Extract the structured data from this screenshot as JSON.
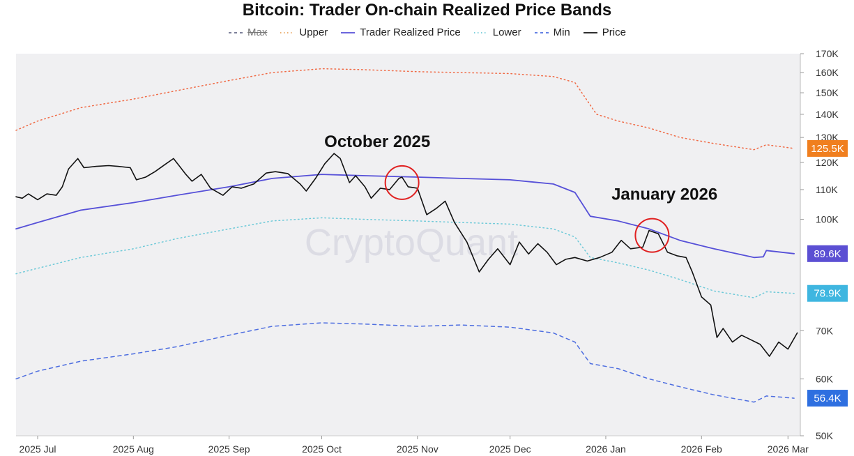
{
  "chart_data": {
    "type": "line",
    "title": "Bitcoin: Trader On-chain Realized Price Bands",
    "watermark": "CryptoQuant",
    "x_start": "2025-06-24",
    "x_end": "2026-03-05",
    "x_ticks": [
      {
        "date": "2025-07-01",
        "label": "2025 Jul"
      },
      {
        "date": "2025-08-01",
        "label": "2025 Aug"
      },
      {
        "date": "2025-09-01",
        "label": "2025 Sep"
      },
      {
        "date": "2025-10-01",
        "label": "2025 Oct"
      },
      {
        "date": "2025-11-01",
        "label": "2025 Nov"
      },
      {
        "date": "2025-12-01",
        "label": "2025 Dec"
      },
      {
        "date": "2026-01-01",
        "label": "2026 Jan"
      },
      {
        "date": "2026-02-01",
        "label": "2026 Feb"
      },
      {
        "date": "2026-03-01",
        "label": "2026 Mar"
      }
    ],
    "y_scale": "log",
    "ylim": [
      50000,
      170000
    ],
    "y_ticks": [
      {
        "value": 50000,
        "label": "50K"
      },
      {
        "value": 60000,
        "label": "60K"
      },
      {
        "value": 70000,
        "label": "70K"
      },
      {
        "value": 100000,
        "label": "100K"
      },
      {
        "value": 110000,
        "label": "110K"
      },
      {
        "value": 120000,
        "label": "120K"
      },
      {
        "value": 130000,
        "label": "130K"
      },
      {
        "value": 140000,
        "label": "140K"
      },
      {
        "value": 150000,
        "label": "150K"
      },
      {
        "value": 160000,
        "label": "160K"
      },
      {
        "value": 170000,
        "label": "170K"
      }
    ],
    "legend_position": "top-center",
    "legend": [
      {
        "name": "Max",
        "key": "max",
        "color": "#6b6f8c",
        "dash": "5,5",
        "disabled": true
      },
      {
        "name": "Upper",
        "key": "upper",
        "color": "#e8a35a",
        "dash": "1.5,4",
        "disabled": false
      },
      {
        "name": "Trader Realized Price",
        "key": "trp",
        "color": "#5650d8",
        "dash": "",
        "disabled": false
      },
      {
        "name": "Lower",
        "key": "lower",
        "color": "#6cc9d8",
        "dash": "1.5,4",
        "disabled": false
      },
      {
        "name": "Min",
        "key": "min",
        "color": "#4e6ee0",
        "dash": "5,5",
        "disabled": false
      },
      {
        "name": "Price",
        "key": "price",
        "color": "#111111",
        "dash": "",
        "disabled": false
      }
    ],
    "series": [
      {
        "name": "Upper",
        "key": "upper",
        "color": "#f06a45",
        "dash": "1.5,4",
        "width": 1.5,
        "points": [
          [
            "2025-06-24",
            133000
          ],
          [
            "2025-07-01",
            137000
          ],
          [
            "2025-07-15",
            143000
          ],
          [
            "2025-08-01",
            147000
          ],
          [
            "2025-08-15",
            151000
          ],
          [
            "2025-09-01",
            156000
          ],
          [
            "2025-09-15",
            160000
          ],
          [
            "2025-10-01",
            162000
          ],
          [
            "2025-10-15",
            161500
          ],
          [
            "2025-11-01",
            160500
          ],
          [
            "2025-11-15",
            160000
          ],
          [
            "2025-12-01",
            159500
          ],
          [
            "2025-12-15",
            158000
          ],
          [
            "2025-12-22",
            155000
          ],
          [
            "2025-12-29",
            140000
          ],
          [
            "2026-01-05",
            137000
          ],
          [
            "2026-01-15",
            134000
          ],
          [
            "2026-01-25",
            130000
          ],
          [
            "2026-02-05",
            127500
          ],
          [
            "2026-02-18",
            125000
          ],
          [
            "2026-02-22",
            127000
          ],
          [
            "2026-03-03",
            125500
          ]
        ]
      },
      {
        "name": "Trader Realized Price",
        "key": "trp",
        "color": "#5650d8",
        "dash": "",
        "width": 1.8,
        "points": [
          [
            "2025-06-24",
            97000
          ],
          [
            "2025-07-01",
            99000
          ],
          [
            "2025-07-15",
            103000
          ],
          [
            "2025-08-01",
            105500
          ],
          [
            "2025-08-15",
            108000
          ],
          [
            "2025-09-01",
            111000
          ],
          [
            "2025-09-15",
            114000
          ],
          [
            "2025-10-01",
            115500
          ],
          [
            "2025-10-15",
            115000
          ],
          [
            "2025-11-01",
            114500
          ],
          [
            "2025-11-15",
            114000
          ],
          [
            "2025-12-01",
            113500
          ],
          [
            "2025-12-15",
            112000
          ],
          [
            "2025-12-22",
            109000
          ],
          [
            "2025-12-27",
            101000
          ],
          [
            "2026-01-05",
            99500
          ],
          [
            "2026-01-15",
            97000
          ],
          [
            "2026-01-25",
            93500
          ],
          [
            "2026-02-05",
            91000
          ],
          [
            "2026-02-18",
            88500
          ],
          [
            "2026-02-21",
            88700
          ],
          [
            "2026-02-22",
            90500
          ],
          [
            "2026-03-03",
            89600
          ]
        ]
      },
      {
        "name": "Lower",
        "key": "lower",
        "color": "#6cc9d8",
        "dash": "1.5,4",
        "width": 1.5,
        "points": [
          [
            "2025-06-24",
            84000
          ],
          [
            "2025-07-01",
            85500
          ],
          [
            "2025-07-15",
            88500
          ],
          [
            "2025-08-01",
            91000
          ],
          [
            "2025-08-15",
            94000
          ],
          [
            "2025-09-01",
            97000
          ],
          [
            "2025-09-15",
            99500
          ],
          [
            "2025-10-01",
            100500
          ],
          [
            "2025-10-15",
            100000
          ],
          [
            "2025-11-01",
            99500
          ],
          [
            "2025-11-15",
            99000
          ],
          [
            "2025-12-01",
            98500
          ],
          [
            "2025-12-15",
            97000
          ],
          [
            "2025-12-22",
            94500
          ],
          [
            "2025-12-27",
            88500
          ],
          [
            "2026-01-05",
            87000
          ],
          [
            "2026-01-15",
            85000
          ],
          [
            "2026-01-25",
            82500
          ],
          [
            "2026-02-05",
            79500
          ],
          [
            "2026-02-18",
            77800
          ],
          [
            "2026-02-22",
            79300
          ],
          [
            "2026-03-03",
            78900
          ]
        ]
      },
      {
        "name": "Min",
        "key": "min",
        "color": "#4e6ee0",
        "dash": "5,5",
        "width": 1.5,
        "points": [
          [
            "2025-06-24",
            60000
          ],
          [
            "2025-07-01",
            61500
          ],
          [
            "2025-07-15",
            63500
          ],
          [
            "2025-08-01",
            65000
          ],
          [
            "2025-08-15",
            66500
          ],
          [
            "2025-09-01",
            69000
          ],
          [
            "2025-09-15",
            71000
          ],
          [
            "2025-10-01",
            71800
          ],
          [
            "2025-10-15",
            71500
          ],
          [
            "2025-11-01",
            71000
          ],
          [
            "2025-11-15",
            71300
          ],
          [
            "2025-12-01",
            70800
          ],
          [
            "2025-12-15",
            69500
          ],
          [
            "2025-12-22",
            67500
          ],
          [
            "2025-12-27",
            63000
          ],
          [
            "2026-01-05",
            62000
          ],
          [
            "2026-01-15",
            60000
          ],
          [
            "2026-01-25",
            58500
          ],
          [
            "2026-02-05",
            57000
          ],
          [
            "2026-02-18",
            55700
          ],
          [
            "2026-02-22",
            56800
          ],
          [
            "2026-03-03",
            56400
          ]
        ]
      },
      {
        "name": "Price",
        "key": "price",
        "color": "#111111",
        "dash": "",
        "width": 1.6,
        "points": [
          [
            "2025-06-24",
            107500
          ],
          [
            "2025-06-26",
            107000
          ],
          [
            "2025-06-28",
            108500
          ],
          [
            "2025-07-01",
            106500
          ],
          [
            "2025-07-04",
            108500
          ],
          [
            "2025-07-07",
            108000
          ],
          [
            "2025-07-09",
            111000
          ],
          [
            "2025-07-11",
            117500
          ],
          [
            "2025-07-14",
            121500
          ],
          [
            "2025-07-16",
            118000
          ],
          [
            "2025-07-20",
            118500
          ],
          [
            "2025-07-24",
            118800
          ],
          [
            "2025-07-27",
            118500
          ],
          [
            "2025-07-31",
            118000
          ],
          [
            "2025-08-02",
            113500
          ],
          [
            "2025-08-05",
            114500
          ],
          [
            "2025-08-08",
            116500
          ],
          [
            "2025-08-11",
            119000
          ],
          [
            "2025-08-14",
            121500
          ],
          [
            "2025-08-16",
            118500
          ],
          [
            "2025-08-18",
            115500
          ],
          [
            "2025-08-20",
            113000
          ],
          [
            "2025-08-23",
            115500
          ],
          [
            "2025-08-26",
            110500
          ],
          [
            "2025-08-30",
            108000
          ],
          [
            "2025-09-02",
            111000
          ],
          [
            "2025-09-05",
            110500
          ],
          [
            "2025-09-09",
            112000
          ],
          [
            "2025-09-13",
            116000
          ],
          [
            "2025-09-16",
            116500
          ],
          [
            "2025-09-20",
            115800
          ],
          [
            "2025-09-24",
            112000
          ],
          [
            "2025-09-26",
            109500
          ],
          [
            "2025-09-29",
            114000
          ],
          [
            "2025-10-02",
            119500
          ],
          [
            "2025-10-05",
            123500
          ],
          [
            "2025-10-07",
            121500
          ],
          [
            "2025-10-10",
            112500
          ],
          [
            "2025-10-12",
            115000
          ],
          [
            "2025-10-15",
            111000
          ],
          [
            "2025-10-17",
            107000
          ],
          [
            "2025-10-20",
            110500
          ],
          [
            "2025-10-23",
            110000
          ],
          [
            "2025-10-26",
            114000
          ],
          [
            "2025-10-27",
            114500
          ],
          [
            "2025-10-29",
            111000
          ],
          [
            "2025-11-01",
            110500
          ],
          [
            "2025-11-04",
            101500
          ],
          [
            "2025-11-07",
            103500
          ],
          [
            "2025-11-10",
            106000
          ],
          [
            "2025-11-13",
            99000
          ],
          [
            "2025-11-17",
            93000
          ],
          [
            "2025-11-21",
            84500
          ],
          [
            "2025-11-24",
            88000
          ],
          [
            "2025-11-27",
            91000
          ],
          [
            "2025-12-01",
            86500
          ],
          [
            "2025-12-04",
            93000
          ],
          [
            "2025-12-07",
            89500
          ],
          [
            "2025-12-10",
            92500
          ],
          [
            "2025-12-13",
            90000
          ],
          [
            "2025-12-16",
            86500
          ],
          [
            "2025-12-19",
            88000
          ],
          [
            "2025-12-22",
            88500
          ],
          [
            "2025-12-26",
            87500
          ],
          [
            "2025-12-30",
            88500
          ],
          [
            "2026-01-03",
            90000
          ],
          [
            "2026-01-06",
            93500
          ],
          [
            "2026-01-09",
            91000
          ],
          [
            "2026-01-13",
            91500
          ],
          [
            "2026-01-15",
            96500
          ],
          [
            "2026-01-18",
            95500
          ],
          [
            "2026-01-21",
            90000
          ],
          [
            "2026-01-24",
            89000
          ],
          [
            "2026-01-27",
            88500
          ],
          [
            "2026-01-29",
            84500
          ],
          [
            "2026-02-01",
            78000
          ],
          [
            "2026-02-04",
            76000
          ],
          [
            "2026-02-06",
            68500
          ],
          [
            "2026-02-08",
            70500
          ],
          [
            "2026-02-11",
            67500
          ],
          [
            "2026-02-14",
            69000
          ],
          [
            "2026-02-17",
            68000
          ],
          [
            "2026-02-20",
            67000
          ],
          [
            "2026-02-23",
            64500
          ],
          [
            "2026-02-26",
            67500
          ],
          [
            "2026-03-01",
            66000
          ],
          [
            "2026-03-04",
            69500
          ]
        ]
      }
    ],
    "current_value_badges": [
      {
        "key": "upper",
        "label": "125.5K",
        "value": 125500,
        "color": "#f07f1f"
      },
      {
        "key": "trp",
        "label": "89.6K",
        "value": 89600,
        "color": "#5b4fd3"
      },
      {
        "key": "lower",
        "label": "78.9K",
        "value": 78900,
        "color": "#3fb6e0"
      },
      {
        "key": "min",
        "label": "56.4K",
        "value": 56400,
        "color": "#2e6fe0"
      }
    ],
    "annotations": [
      {
        "text": "October 2025",
        "circle_date": "2025-10-27",
        "circle_value": 112500,
        "label_date": "2025-10-19",
        "label_value": 126000
      },
      {
        "text": "January 2026",
        "circle_date": "2026-01-16",
        "circle_value": 95000,
        "label_date": "2026-01-20",
        "label_value": 106500
      }
    ]
  },
  "colors": {
    "plot_background": "#f0f0f2",
    "annotation_circle": "#e02020"
  }
}
